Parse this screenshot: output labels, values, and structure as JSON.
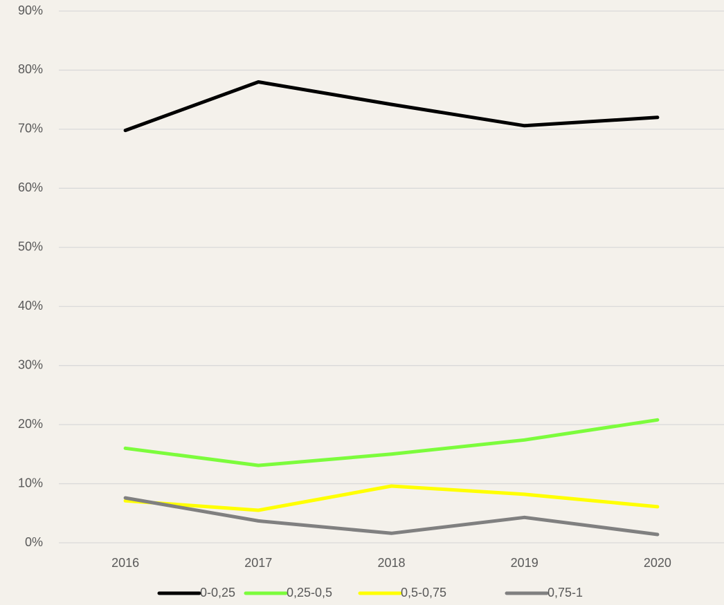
{
  "chart_data": {
    "type": "line",
    "categories": [
      "2016",
      "2017",
      "2018",
      "2019",
      "2020"
    ],
    "series": [
      {
        "name": "0-0,25",
        "color": "#000000",
        "values": [
          69.8,
          78.0,
          74.2,
          70.6,
          72.0
        ]
      },
      {
        "name": "0,25-0,5",
        "color": "#7cfc3c",
        "values": [
          16.0,
          13.1,
          15.0,
          17.4,
          20.8
        ]
      },
      {
        "name": "0,5-0,75",
        "color": "#ffff00",
        "values": [
          7.1,
          5.5,
          9.6,
          8.2,
          6.1
        ]
      },
      {
        "name": "0,75-1",
        "color": "#808080",
        "values": [
          7.6,
          3.7,
          1.6,
          4.3,
          1.4
        ]
      }
    ],
    "ylim": [
      0,
      90
    ],
    "yticks": [
      {
        "value": 0,
        "label": "0%"
      },
      {
        "value": 10,
        "label": "10%"
      },
      {
        "value": 20,
        "label": "20%"
      },
      {
        "value": 30,
        "label": "30%"
      },
      {
        "value": 40,
        "label": "40%"
      },
      {
        "value": 50,
        "label": "50%"
      },
      {
        "value": 60,
        "label": "60%"
      },
      {
        "value": 70,
        "label": "70%"
      },
      {
        "value": 80,
        "label": "80%"
      },
      {
        "value": 90,
        "label": "90%"
      }
    ],
    "grid": true,
    "legend": "bottom"
  }
}
